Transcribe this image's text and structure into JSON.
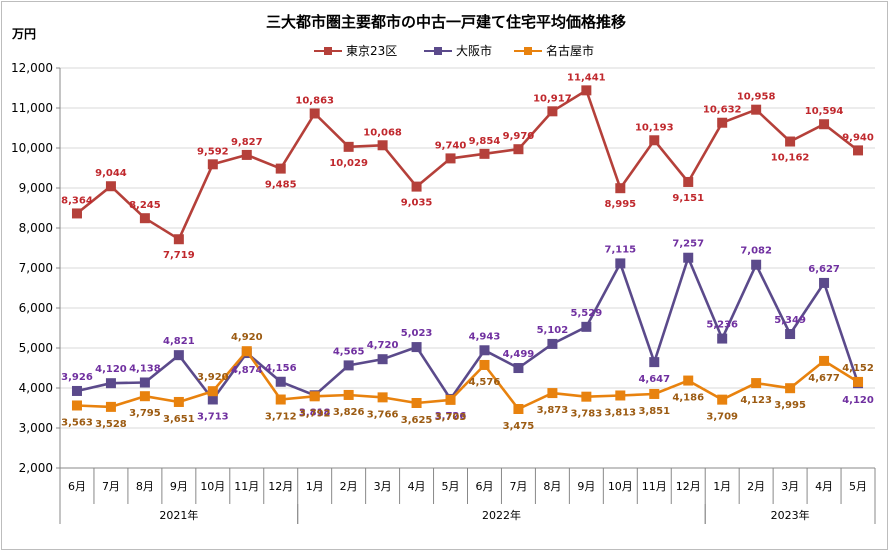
{
  "chart_data": {
    "type": "line",
    "title": "三大都市圏主要都市の中古一戸建て住宅平均価格推移",
    "ylabel": "万円",
    "ylim": [
      2000,
      12000
    ],
    "yticks": [
      "2,000",
      "3,000",
      "4,000",
      "5,000",
      "6,000",
      "7,000",
      "8,000",
      "9,000",
      "10,000",
      "11,000",
      "12,000"
    ],
    "ytick_values": [
      2000,
      3000,
      4000,
      5000,
      6000,
      7000,
      8000,
      9000,
      10000,
      11000,
      12000
    ],
    "categories": [
      "6月",
      "7月",
      "8月",
      "9月",
      "10月",
      "11月",
      "12月",
      "1月",
      "2月",
      "3月",
      "4月",
      "5月",
      "6月",
      "7月",
      "8月",
      "9月",
      "10月",
      "11月",
      "12月",
      "1月",
      "2月",
      "3月",
      "4月",
      "5月"
    ],
    "years": [
      {
        "label": "2021年",
        "start": 0,
        "end": 6
      },
      {
        "label": "2022年",
        "start": 7,
        "end": 18
      },
      {
        "label": "2023年",
        "start": 19,
        "end": 23
      }
    ],
    "legend_position": "top-center",
    "grid": true,
    "series": [
      {
        "name": "東京23区",
        "color": "#b5403a",
        "label_color": "#c0282d",
        "values": [
          8364,
          9044,
          8245,
          7719,
          9592,
          9827,
          9485,
          10863,
          10029,
          10068,
          9035,
          9740,
          9854,
          9970,
          10917,
          11441,
          8995,
          10193,
          9151,
          10632,
          10958,
          10162,
          10594,
          9940
        ],
        "labels": [
          "8,364",
          "9,044",
          "8,245",
          "7,719",
          "9,592",
          "9,827",
          "9,485",
          "10,863",
          "10,029",
          "10,068",
          "9,035",
          "9,740",
          "9,854",
          "9,970",
          "10,917",
          "11,441",
          "8,995",
          "10,193",
          "9,151",
          "10,632",
          "10,958",
          "10,162",
          "10,594",
          "9,940"
        ]
      },
      {
        "name": "大阪市",
        "color": "#5b4a8b",
        "label_color": "#7030a0",
        "values": [
          3926,
          4120,
          4138,
          4821,
          3713,
          4874,
          4156,
          3818,
          4565,
          4720,
          5023,
          3726,
          4943,
          4499,
          5102,
          5529,
          7115,
          4647,
          7257,
          5236,
          7082,
          5349,
          6627,
          4120
        ],
        "labels": [
          "3,926",
          "4,120",
          "4,138",
          "4,821",
          "3,713",
          "4,874",
          "4,156",
          "3,818",
          "4,565",
          "4,720",
          "5,023",
          "3,726",
          "4,943",
          "4,499",
          "5,102",
          "5,529",
          "7,115",
          "4,647",
          "7,257",
          "5,236",
          "7,082",
          "5,349",
          "6,627",
          "4,120"
        ]
      },
      {
        "name": "名古屋市",
        "color": "#e8820e",
        "label_color": "#9c5b12",
        "values": [
          3563,
          3528,
          3795,
          3651,
          3920,
          4920,
          3712,
          3792,
          3826,
          3766,
          3625,
          3703,
          4576,
          3475,
          3873,
          3783,
          3813,
          3851,
          4186,
          3709,
          4123,
          3995,
          4677,
          4152
        ],
        "labels": [
          "3,563",
          "3,528",
          "3,795",
          "3,651",
          "3,920",
          "4,920",
          "3,712",
          "3,792",
          "3,826",
          "3,766",
          "3,625",
          "3,703",
          "4,576",
          "3,475",
          "3,873",
          "3,783",
          "3,813",
          "3,851",
          "4,186",
          "3,709",
          "4,123",
          "3,995",
          "4,677",
          "4,152"
        ]
      }
    ]
  }
}
